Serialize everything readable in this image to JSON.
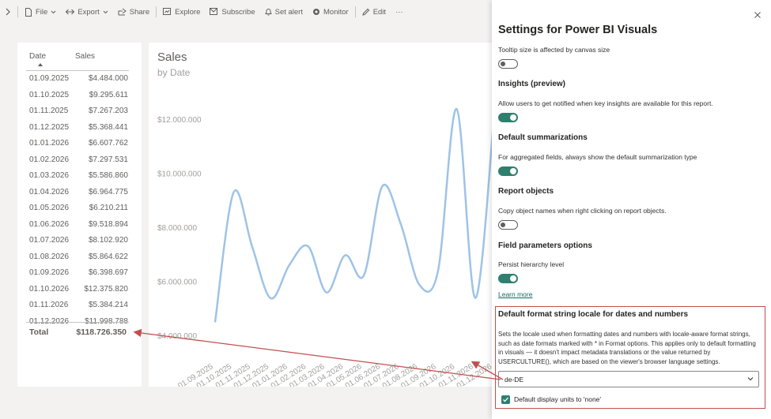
{
  "toolbar": {
    "items": [
      {
        "label": "File",
        "icon": "file-icon"
      },
      {
        "label": "Export",
        "icon": "export-icon"
      },
      {
        "label": "Share",
        "icon": "share-icon"
      },
      {
        "label": "Explore",
        "icon": "explore-icon"
      },
      {
        "label": "Subscribe",
        "icon": "subscribe-icon"
      },
      {
        "label": "Set alert",
        "icon": "bell-icon"
      },
      {
        "label": "Monitor",
        "icon": "monitor-icon"
      },
      {
        "label": "Edit",
        "icon": "pencil-icon"
      }
    ],
    "more": "···"
  },
  "table": {
    "headers": {
      "date": "Date",
      "sales": "Sales"
    },
    "rows": [
      {
        "date": "01.09.2025",
        "sales": "$4.484.000"
      },
      {
        "date": "01.10.2025",
        "sales": "$9.295.611"
      },
      {
        "date": "01.11.2025",
        "sales": "$7.267.203"
      },
      {
        "date": "01.12.2025",
        "sales": "$5.368.441"
      },
      {
        "date": "01.01.2026",
        "sales": "$6.607.762"
      },
      {
        "date": "01.02.2026",
        "sales": "$7.297.531"
      },
      {
        "date": "01.03.2026",
        "sales": "$5.586.860"
      },
      {
        "date": "01.04.2026",
        "sales": "$6.964.775"
      },
      {
        "date": "01.05.2026",
        "sales": "$6.210.211"
      },
      {
        "date": "01.06.2026",
        "sales": "$9.518.894"
      },
      {
        "date": "01.07.2026",
        "sales": "$8.102.920"
      },
      {
        "date": "01.08.2026",
        "sales": "$5.864.622"
      },
      {
        "date": "01.09.2026",
        "sales": "$6.398.697"
      },
      {
        "date": "01.10.2026",
        "sales": "$12.375.820"
      },
      {
        "date": "01.11.2026",
        "sales": "$5.384.214"
      },
      {
        "date": "01.12.2026",
        "sales": "$11.998.788"
      }
    ],
    "total_label": "Total",
    "total_value": "$118.726.350"
  },
  "chart": {
    "title": "Sales",
    "subtitle": "by Date",
    "line_color": "#9ec3e6"
  },
  "chart_data": {
    "type": "line",
    "title": "Sales",
    "subtitle": "by Date",
    "x": [
      "01.09.2025",
      "01.10.2025",
      "01.11.2025",
      "01.12.2025",
      "01.01.2026",
      "01.02.2026",
      "01.03.2026",
      "01.04.2026",
      "01.05.2026",
      "01.06.2026",
      "01.07.2026",
      "01.08.2026",
      "01.09.2026",
      "01.10.2026",
      "01.11.2026",
      "01.12.2026"
    ],
    "series": [
      {
        "values": [
          4484000,
          9295611,
          7267203,
          5368441,
          6607762,
          7297531,
          5586860,
          6964775,
          6210211,
          9518894,
          8102920,
          5864622,
          6398697,
          12375820,
          5384214,
          11998788
        ]
      }
    ],
    "y_ticks": [
      "$4.000.000",
      "$6.000.000",
      "$8.000.000",
      "$10.000.000",
      "$12.000.000"
    ],
    "ylim": [
      4000000,
      12000000
    ],
    "grid": false
  },
  "panel": {
    "title": "Settings for Power BI Visuals",
    "tooltip_text": "Tooltip size is affected by canvas size",
    "insights_head": "Insights (preview)",
    "insights_text": "Allow users to get notified when key insights are available for this report.",
    "summ_head": "Default summarizations",
    "summ_text": "For aggregated fields, always show the default summarization type",
    "objects_head": "Report objects",
    "objects_text": "Copy object names when right clicking on report objects.",
    "fields_head": "Field parameters options",
    "fields_text": "Persist hierarchy level",
    "learn_more": "Learn more",
    "locale_head": "Default format string locale for dates and numbers",
    "locale_desc": "Sets the locale used when formatting dates and numbers with locale-aware format strings, such as date formats marked with * in Format options. This applies only to default formatting in visuals — it doesn't impact metadata translations or the value returned by USERCULTURE(), which are based on the viewer's browser language settings.",
    "locale_value": "de-DE",
    "checkbox_label": "Default display units to 'none'",
    "toggles": {
      "tooltip": false,
      "insights": true,
      "summarizations": true,
      "objects": false,
      "fields": true
    },
    "checkbox_checked": true,
    "accent_color": "#2f7f6f",
    "highlight_color": "#c0504d"
  }
}
